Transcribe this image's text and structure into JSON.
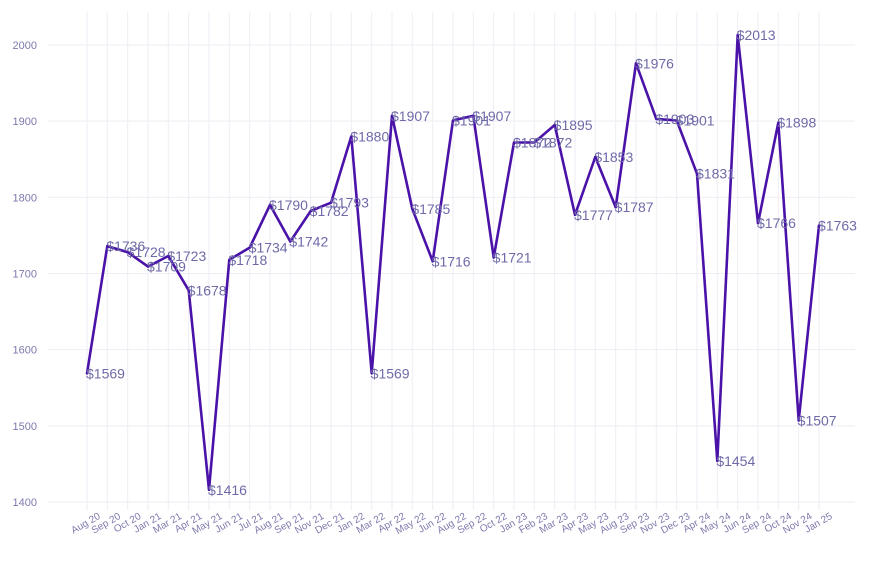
{
  "chart_data": {
    "type": "line",
    "title": "",
    "xlabel": "",
    "ylabel": "",
    "ylim": [
      1390,
      2045
    ],
    "yticks": [
      1400,
      1500,
      1600,
      1700,
      1800,
      1900,
      2000
    ],
    "ytick_labels": [
      "1400",
      "1500",
      "1600",
      "1700",
      "1800",
      "1900",
      "2000"
    ],
    "grid": true,
    "legend": "none",
    "categories": [
      "Aug 20",
      "Sep 20",
      "Oct 20",
      "Jan 21",
      "Mar 21",
      "Apr 21",
      "May 21",
      "Jun 21",
      "Jul 21",
      "Aug 21",
      "Sep 21",
      "Nov 21",
      "Dec 21",
      "Jan 22",
      "Mar 22",
      "Apr 22",
      "May 22",
      "Jun 22",
      "Aug 22",
      "Sep 22",
      "Oct 22",
      "Jan 23",
      "Feb 23",
      "Mar 23",
      "Apr 23",
      "May 23",
      "Aug 23",
      "Sep 23",
      "Nov 23",
      "Dec 23",
      "Apr 24",
      "May 24",
      "Jun 24",
      "Sep 24",
      "Oct 24",
      "Nov 24",
      "Jan 25"
    ],
    "series": [
      {
        "name": "Price",
        "values": [
          1569,
          1736,
          1728,
          1709,
          1723,
          1678,
          1416,
          1718,
          1734,
          1790,
          1742,
          1782,
          1793,
          1880,
          1569,
          1907,
          1785,
          1716,
          1901,
          1907,
          1721,
          1872,
          1872,
          1895,
          1777,
          1853,
          1787,
          1976,
          1903,
          1901,
          1831,
          1454,
          2013,
          1766,
          1898,
          1507,
          1763
        ],
        "labels": [
          "$1569",
          "$1736",
          "$1728",
          "$1709",
          "$1723",
          "$1678",
          "$1416",
          "$1718",
          "$1734",
          "$1790",
          "$1742",
          "$1782",
          "$1793",
          "$1880",
          "$1569",
          "$1907",
          "$1785",
          "$1716",
          "$1901",
          "$1907",
          "$1721",
          "$1872",
          "$1872",
          "$1895",
          "$1777",
          "$1853",
          "$1787",
          "$1976",
          "$1903",
          "$1901",
          "$1831",
          "$1454",
          "$2013",
          "$1766",
          "$1898",
          "$1507",
          "$1763"
        ]
      }
    ]
  },
  "colors": {
    "line": "#4a12a8",
    "label_text": "#6e6aa8",
    "tick_text": "#7d7aae"
  }
}
